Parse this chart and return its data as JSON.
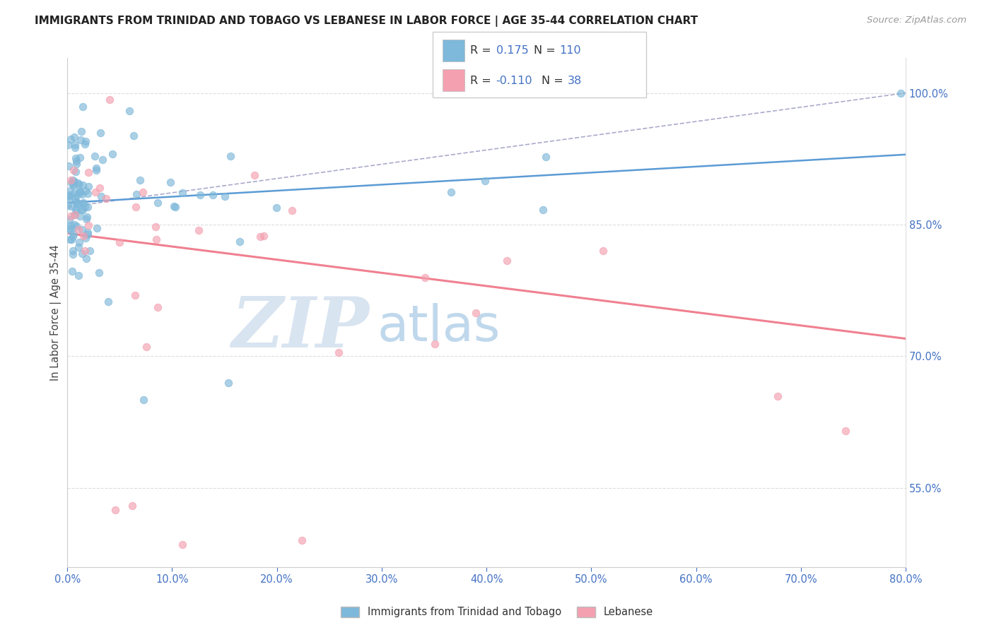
{
  "title": "IMMIGRANTS FROM TRINIDAD AND TOBAGO VS LEBANESE IN LABOR FORCE | AGE 35-44 CORRELATION CHART",
  "source_text": "Source: ZipAtlas.com",
  "ylabel": "In Labor Force | Age 35-44",
  "r_tt": 0.175,
  "n_tt": 110,
  "r_lb": -0.11,
  "n_lb": 38,
  "xlim": [
    0.0,
    80.0
  ],
  "ylim": [
    46.0,
    104.0
  ],
  "watermark_zip": "ZIP",
  "watermark_atlas": "atlas",
  "legend_label_tt": "Immigrants from Trinidad and Tobago",
  "legend_label_lb": "Lebanese",
  "color_tt": "#7EB8DA",
  "color_lb": "#F4A0B0",
  "trendline_tt_color": "#5B9BD5",
  "trendline_dashed_color": "#AAAACC",
  "trendline_lb_color": "#F08090",
  "background_color": "#FFFFFF",
  "grid_color": "#DDDDDD",
  "yticks": [
    55,
    70,
    85,
    100
  ],
  "xtick_color": "#4472C4",
  "ytick_color": "#4472C4"
}
